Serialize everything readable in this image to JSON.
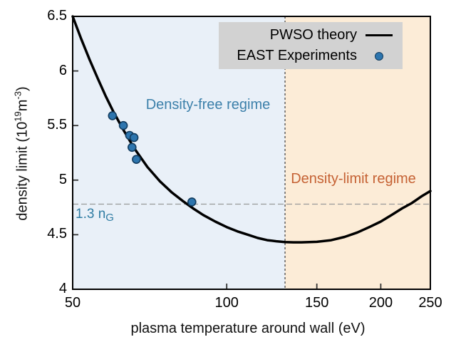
{
  "chart_data": {
    "type": "line",
    "title": "",
    "xlabel": "plasma temperature around wall (eV)",
    "ylabel": "density limit (10^19 m^-3)",
    "x_scale": "log",
    "xlim": [
      50,
      250
    ],
    "ylim": [
      4,
      6.5
    ],
    "x_ticks": [
      50,
      100,
      150,
      200,
      250
    ],
    "y_ticks": [
      4,
      4.5,
      5,
      5.5,
      6,
      6.5
    ],
    "grid": false,
    "legend_position": "top-right",
    "series": [
      {
        "name": "PWSO theory",
        "type": "line",
        "color": "#000000",
        "width": 3.5,
        "x": [
          50,
          52,
          54,
          56,
          58,
          60,
          63,
          66,
          70,
          74,
          78,
          82,
          86,
          90,
          95,
          100,
          105,
          110,
          115,
          120,
          125,
          130,
          135,
          140,
          145,
          150,
          160,
          170,
          180,
          190,
          200,
          210,
          220,
          230,
          240,
          250
        ],
        "y": [
          6.5,
          6.29,
          6.1,
          5.93,
          5.77,
          5.63,
          5.45,
          5.29,
          5.12,
          4.99,
          4.89,
          4.81,
          4.74,
          4.68,
          4.62,
          4.57,
          4.53,
          4.5,
          4.47,
          4.45,
          4.44,
          4.433,
          4.43,
          4.43,
          4.432,
          4.435,
          4.45,
          4.48,
          4.52,
          4.57,
          4.62,
          4.68,
          4.74,
          4.79,
          4.85,
          4.9
        ]
      },
      {
        "name": "EAST Experiments",
        "type": "scatter",
        "color": "#2d75ae",
        "edge_color": "#123c5f",
        "x": [
          59.8,
          62.8,
          64.6,
          65.9,
          65.3,
          66.6,
          85.5
        ],
        "y": [
          5.59,
          5.5,
          5.41,
          5.39,
          5.3,
          5.19,
          4.8
        ]
      }
    ],
    "annotations": {
      "vline": {
        "x": 130,
        "style": "dashed",
        "color": "#3a3a3a"
      },
      "hline": {
        "y": 4.78,
        "style": "dashed",
        "color": "#999999",
        "label": "1.3 n",
        "label_sub": "G",
        "label_color": "#2f7ca3"
      },
      "regions": [
        {
          "label": "Density-free regime",
          "x_from": 50,
          "x_to": 130,
          "fill": "#e9f0f8",
          "label_color": "#3c80aa"
        },
        {
          "label": "Density-limit regime",
          "x_from": 130,
          "x_to": 250,
          "fill": "#fcecd7",
          "label_color": "#c56133"
        }
      ]
    },
    "legend": {
      "background": "#d2d2d2",
      "entries": [
        {
          "label": "PWSO theory",
          "marker": "line"
        },
        {
          "label": "EAST Experiments",
          "marker": "dot"
        }
      ]
    }
  },
  "labels": {
    "ylabel_prefix": "density limit (10",
    "ylabel_sup1": "19",
    "ylabel_mid": "m",
    "ylabel_sup2": "-3",
    "ylabel_suffix": ")",
    "ng_text": "1.3 n",
    "ng_sub": "G"
  }
}
